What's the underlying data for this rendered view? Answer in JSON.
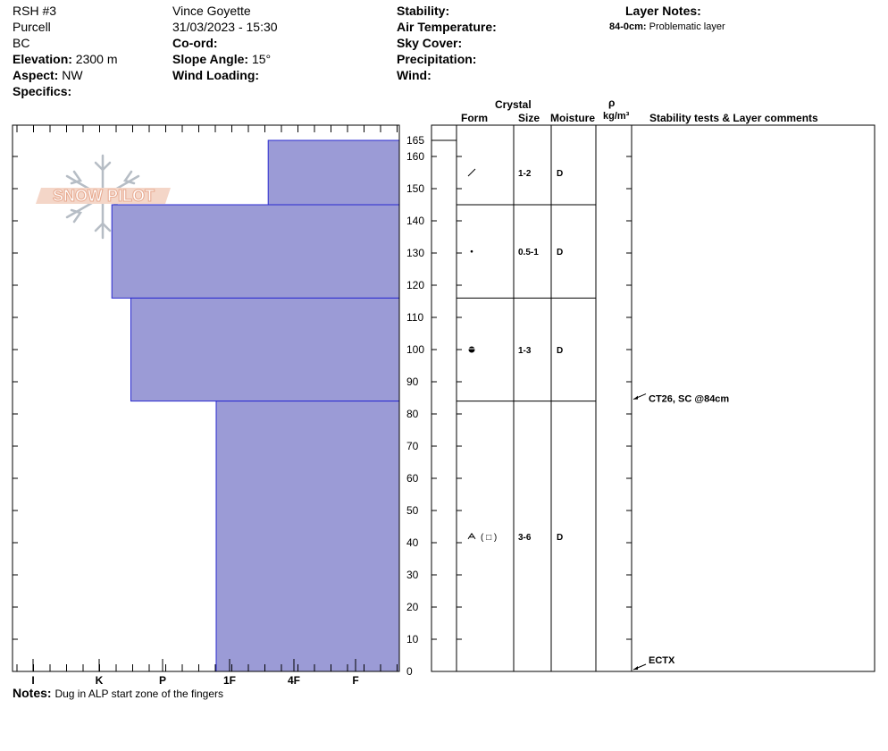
{
  "header": {
    "profile_name": "RSH #3",
    "observer": "Vince Goyette",
    "range": "Purcell",
    "datetime": "31/03/2023 - 15:30",
    "region": "BC",
    "coord_label": "Co-ord:",
    "elevation_label": "Elevation:",
    "elevation_value": "2300 m",
    "slope_label": "Slope Angle:",
    "slope_value": "15°",
    "aspect_label": "Aspect:",
    "aspect_value": "NW",
    "wind_loading_label": "Wind Loading:",
    "specifics_label": "Specifics:",
    "stability_label": "Stability:",
    "air_temp_label": "Air Temperature:",
    "sky_cover_label": "Sky Cover:",
    "precip_label": "Precipitation:",
    "wind_label": "Wind:",
    "layer_notes_label": "Layer Notes:",
    "layer_note_depth": "84-0cm:",
    "layer_note_text": "Problematic layer"
  },
  "columns": {
    "crystal": "Crystal",
    "form": "Form",
    "size": "Size",
    "moisture": "Moisture",
    "rho": "ρ",
    "density_unit": "kg/m³",
    "stability": "Stability tests & Layer comments"
  },
  "logo_text": "SNOW PILOT",
  "notes_label": "Notes:",
  "notes_text": "Dug in ALP start zone of the fingers",
  "colors": {
    "layer_fill": "#9b9bd6",
    "layer_stroke": "#2a2ad0",
    "line": "#000000",
    "logo_text": "#e7a98f",
    "logo_flake": "#b6bdc5"
  },
  "chart_data": {
    "type": "bar",
    "orientation": "horizontal-step-profile",
    "hardness_ticks": [
      "I",
      "K",
      "P",
      "1F",
      "4F",
      "F"
    ],
    "height_ticks": [
      0,
      10,
      20,
      30,
      40,
      50,
      60,
      70,
      80,
      90,
      100,
      110,
      120,
      130,
      140,
      150,
      160
    ],
    "total_depth_label": "165",
    "ylim": [
      0,
      165
    ],
    "layers": [
      {
        "bottom": 145,
        "top": 165,
        "hardness": "F",
        "hardness_index": 1.4,
        "form_icon": "precipitation-particle",
        "size": "1-2",
        "moisture": "D"
      },
      {
        "bottom": 116,
        "top": 145,
        "hardness": "1F",
        "hardness_index": 3.8,
        "form_icon": "graupel-dot",
        "size": "0.5-1",
        "moisture": "D"
      },
      {
        "bottom": 84,
        "top": 116,
        "hardness": "1F-",
        "hardness_index": 3.5,
        "form_icon": "rounded-faceted",
        "size": "1-3",
        "moisture": "D"
      },
      {
        "bottom": 0,
        "top": 84,
        "hardness": "4F+",
        "hardness_index": 2.2,
        "form_icon": "depth-hoar-faceted",
        "form_text": "( □ )",
        "size": "3-6",
        "moisture": "D"
      }
    ],
    "stability_tests": [
      {
        "height": 84,
        "text": "CT26, SC @84cm"
      },
      {
        "height": 0,
        "text": "ECTX"
      }
    ]
  }
}
